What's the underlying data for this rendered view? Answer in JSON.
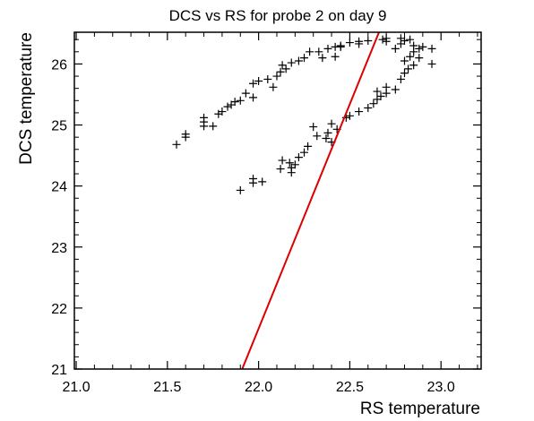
{
  "chart_data": {
    "type": "scatter",
    "title": "DCS vs RS for probe 2 on day 9",
    "xlabel": "RS temperature",
    "ylabel": "DCS temperature",
    "xlim": [
      20.99,
      23.22
    ],
    "ylim": [
      21.0,
      26.52
    ],
    "xticks": [
      21.0,
      21.5,
      22.0,
      22.5,
      23.0
    ],
    "xtick_labels": [
      "21.0",
      "21.5",
      "22.0",
      "22.5",
      "23.0"
    ],
    "yticks": [
      21,
      22,
      23,
      24,
      25,
      26
    ],
    "ytick_labels": [
      "21",
      "22",
      "23",
      "24",
      "25",
      "26"
    ],
    "grid": false,
    "series": [
      {
        "marker": "+",
        "color": "#000000",
        "points": [
          [
            21.55,
            24.68
          ],
          [
            21.6,
            24.8
          ],
          [
            21.6,
            24.85
          ],
          [
            21.7,
            24.98
          ],
          [
            21.7,
            25.05
          ],
          [
            21.7,
            25.12
          ],
          [
            21.75,
            24.98
          ],
          [
            21.78,
            25.18
          ],
          [
            21.8,
            25.22
          ],
          [
            21.83,
            25.3
          ],
          [
            21.85,
            25.33
          ],
          [
            21.87,
            25.38
          ],
          [
            21.9,
            25.4
          ],
          [
            21.93,
            25.52
          ],
          [
            21.97,
            25.45
          ],
          [
            21.97,
            25.68
          ],
          [
            22.0,
            25.72
          ],
          [
            22.05,
            25.75
          ],
          [
            22.08,
            25.62
          ],
          [
            22.1,
            25.8
          ],
          [
            22.12,
            25.87
          ],
          [
            22.13,
            25.98
          ],
          [
            22.15,
            25.92
          ],
          [
            22.18,
            26.02
          ],
          [
            22.22,
            26.05
          ],
          [
            22.25,
            26.1
          ],
          [
            22.28,
            26.2
          ],
          [
            22.33,
            26.2
          ],
          [
            22.35,
            26.1
          ],
          [
            22.38,
            26.25
          ],
          [
            22.42,
            26.28
          ],
          [
            22.42,
            26.12
          ],
          [
            22.45,
            26.28
          ],
          [
            22.45,
            26.3
          ],
          [
            22.5,
            26.35
          ],
          [
            22.55,
            26.33
          ],
          [
            22.55,
            26.37
          ],
          [
            22.6,
            26.38
          ],
          [
            22.68,
            26.4
          ],
          [
            22.7,
            26.37
          ],
          [
            22.7,
            26.42
          ],
          [
            22.75,
            26.25
          ],
          [
            22.78,
            26.33
          ],
          [
            22.78,
            26.42
          ],
          [
            22.8,
            26.38
          ],
          [
            22.83,
            26.4
          ],
          [
            22.85,
            26.3
          ],
          [
            22.88,
            26.25
          ],
          [
            22.9,
            26.28
          ],
          [
            22.95,
            26.25
          ],
          [
            22.95,
            26.0
          ],
          [
            21.9,
            23.93
          ],
          [
            21.97,
            24.05
          ],
          [
            21.97,
            24.12
          ],
          [
            22.02,
            24.07
          ],
          [
            22.12,
            24.28
          ],
          [
            22.13,
            24.42
          ],
          [
            22.17,
            24.38
          ],
          [
            22.18,
            24.3
          ],
          [
            22.18,
            24.22
          ],
          [
            22.2,
            24.35
          ],
          [
            22.22,
            24.47
          ],
          [
            22.25,
            24.55
          ],
          [
            22.27,
            24.65
          ],
          [
            22.3,
            24.97
          ],
          [
            22.32,
            24.82
          ],
          [
            22.37,
            24.78
          ],
          [
            22.38,
            24.87
          ],
          [
            22.4,
            24.72
          ],
          [
            22.4,
            25.02
          ],
          [
            22.43,
            24.93
          ],
          [
            22.48,
            25.12
          ],
          [
            22.5,
            25.15
          ],
          [
            22.55,
            25.22
          ],
          [
            22.6,
            25.28
          ],
          [
            22.63,
            25.35
          ],
          [
            22.65,
            25.42
          ],
          [
            22.65,
            25.55
          ],
          [
            22.67,
            25.47
          ],
          [
            22.7,
            25.52
          ],
          [
            22.7,
            25.62
          ],
          [
            22.75,
            25.58
          ],
          [
            22.78,
            25.75
          ],
          [
            22.8,
            25.85
          ],
          [
            22.8,
            26.05
          ],
          [
            22.82,
            25.92
          ],
          [
            22.83,
            26.12
          ],
          [
            22.85,
            26.2
          ],
          [
            22.85,
            25.98
          ],
          [
            22.88,
            26.1
          ]
        ]
      },
      {
        "type": "line",
        "color": "#dd0000",
        "points": [
          [
            21.91,
            21.0
          ],
          [
            22.66,
            26.52
          ]
        ]
      }
    ]
  }
}
